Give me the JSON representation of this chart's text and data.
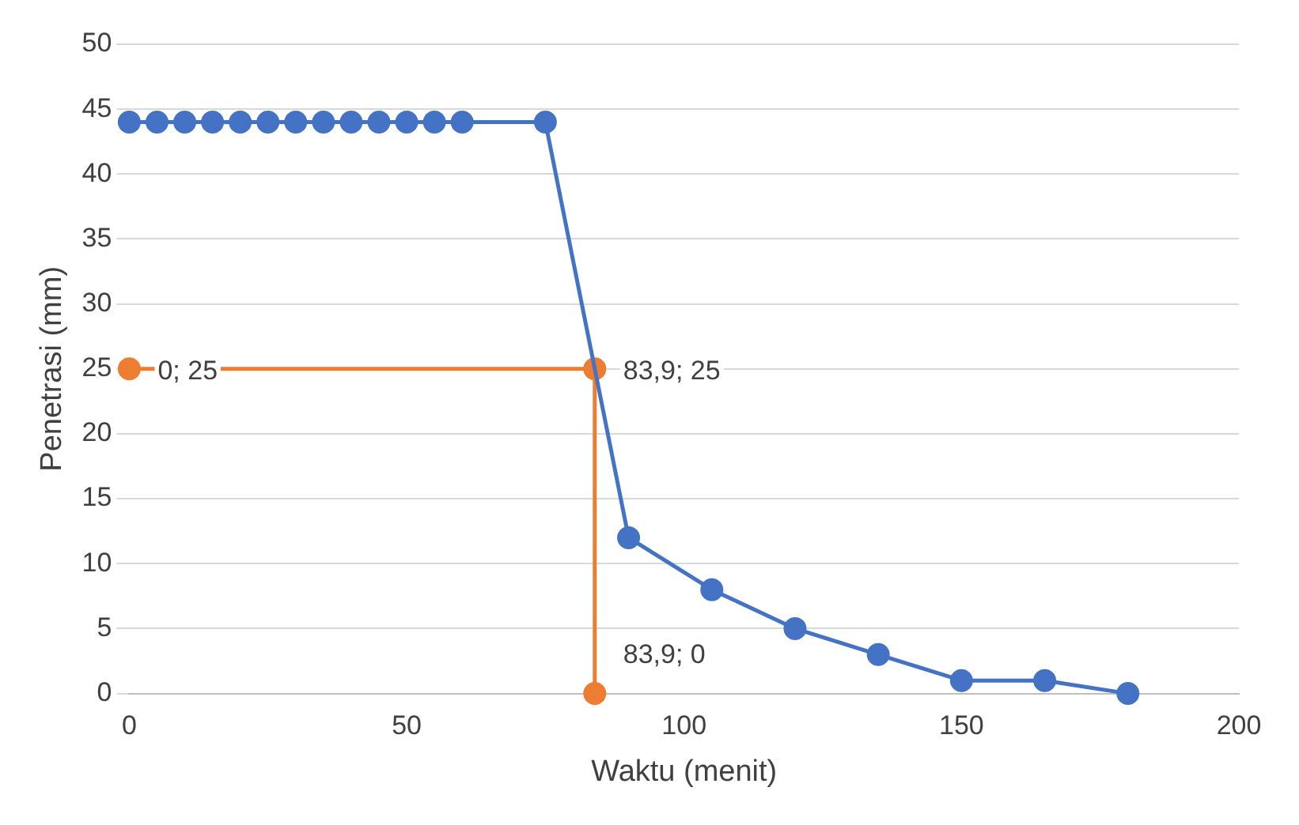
{
  "chart_data": {
    "type": "scatter",
    "xlabel": "Waktu (menit)",
    "ylabel": "Penetrasi (mm)",
    "xlim": [
      0,
      200
    ],
    "xticks": [
      0,
      50,
      100,
      150,
      200
    ],
    "ylim": [
      0,
      50
    ],
    "yticks": [
      0,
      5,
      10,
      15,
      20,
      25,
      30,
      35,
      40,
      45,
      50
    ],
    "grid": "y",
    "legend": false,
    "marker": "circle",
    "line_style": "solid",
    "series": [
      {
        "type": "line",
        "color": "#4472c4",
        "x": [
          0,
          5,
          10,
          15,
          20,
          25,
          30,
          35,
          40,
          45,
          50,
          55,
          60,
          75,
          90,
          105,
          120,
          135,
          150,
          165,
          180
        ],
        "values": [
          44,
          44,
          44,
          44,
          44,
          44,
          44,
          44,
          44,
          44,
          44,
          44,
          44,
          44,
          12,
          8,
          5,
          3,
          1,
          1,
          0
        ]
      },
      {
        "type": "line",
        "color": "#ed7d31",
        "x": [
          0,
          83.9,
          83.9
        ],
        "values": [
          25,
          25,
          0
        ],
        "value_labels": [
          "0; 25",
          "83,9; 25",
          "83,9; 0"
        ]
      }
    ]
  }
}
